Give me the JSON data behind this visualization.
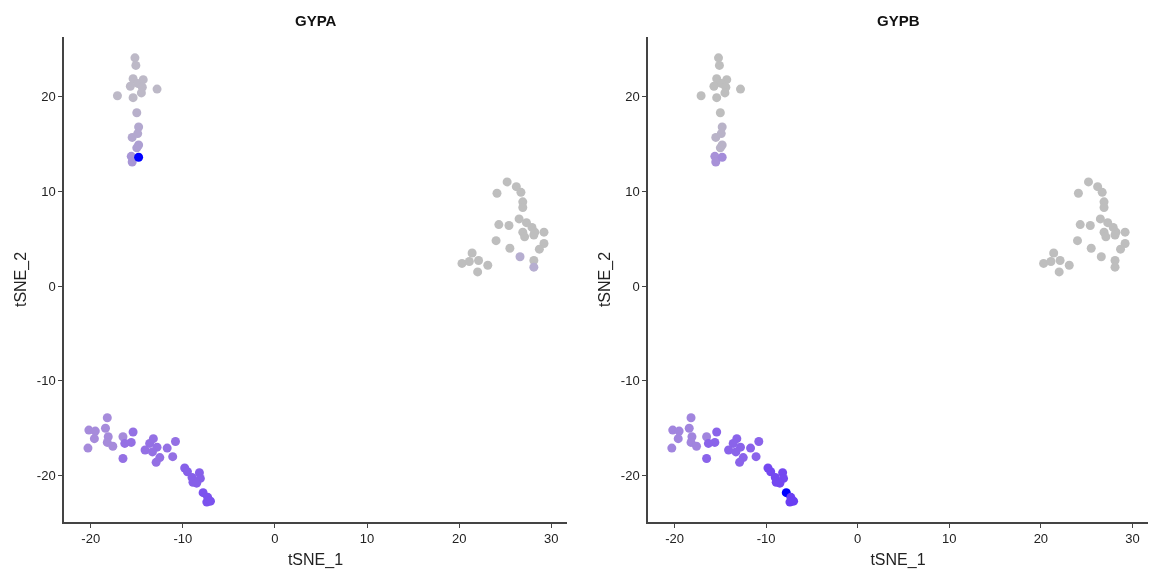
{
  "chart_data": [
    {
      "type": "scatter",
      "title": "GYPA",
      "xlabel": "tSNE_1",
      "ylabel": "tSNE_2",
      "marker": "circle",
      "xlim": [
        -22.9,
        31.7
      ],
      "ylim": [
        -24.9,
        26.3
      ],
      "xticks": [
        -20,
        -10,
        0,
        10,
        20,
        30
      ],
      "yticks": [
        -20,
        -10,
        0,
        10,
        20
      ],
      "x": [
        -15.2,
        -15.1,
        -15.4,
        -14.3,
        -14.9,
        -15.7,
        -14.4,
        -12.8,
        -17.1,
        -15.4,
        -14.5,
        -15.0,
        -14.8,
        -15.5,
        -14.9,
        -14.8,
        -15.0,
        -15.6,
        -15.5,
        -14.8,
        25.2,
        24.1,
        26.2,
        26.7,
        26.9,
        26.9,
        24.3,
        25.4,
        26.5,
        27.3,
        27.9,
        26.9,
        28.2,
        29.2,
        27.1,
        28.1,
        24.0,
        25.5,
        29.2,
        28.7,
        26.6,
        28.1,
        28.1,
        21.4,
        20.3,
        21.1,
        22.1,
        23.1,
        22.0,
        -18.2,
        -20.2,
        -19.5,
        -18.4,
        -19.6,
        -18.1,
        -18.2,
        -17.6,
        -20.3,
        -16.5,
        -15.4,
        -15.6,
        -16.3,
        -16.5,
        -13.2,
        -13.6,
        -12.8,
        -14.1,
        -13.3,
        -12.5,
        -11.7,
        -10.8,
        -11.1,
        -12.9,
        -9.8,
        -9.5,
        -9.0,
        -8.2,
        -8.1,
        -8.9,
        -8.5,
        -7.8,
        -7.3,
        -7.4,
        -7.0
      ],
      "values": [
        24.1,
        23.3,
        21.9,
        21.8,
        21.4,
        21.1,
        21.0,
        20.8,
        20.1,
        19.9,
        20.4,
        18.3,
        16.8,
        15.7,
        16.1,
        14.9,
        14.6,
        13.7,
        13.1,
        13.6,
        11.0,
        9.8,
        10.5,
        9.9,
        8.9,
        8.3,
        6.5,
        6.4,
        7.1,
        6.7,
        6.2,
        5.7,
        5.7,
        5.7,
        5.2,
        5.4,
        4.8,
        4.0,
        4.5,
        3.9,
        3.1,
        2.7,
        2.0,
        3.5,
        2.4,
        2.6,
        2.7,
        2.2,
        1.5,
        -13.9,
        -15.2,
        -15.3,
        -15.0,
        -16.1,
        -15.9,
        -16.5,
        -16.9,
        -17.1,
        -15.9,
        -15.4,
        -16.5,
        -16.6,
        -18.2,
        -16.1,
        -16.6,
        -17.0,
        -17.3,
        -17.5,
        -18.1,
        -17.1,
        -16.4,
        -18.0,
        -18.6,
        -19.2,
        -19.6,
        -20.2,
        -19.7,
        -20.3,
        -20.7,
        -20.8,
        -21.8,
        -22.3,
        -22.8,
        -22.7
      ],
      "colors": [
        "#bdb9c7",
        "#bdb9c7",
        "#bdb9c7",
        "#bdb9c7",
        "#bdb9c7",
        "#bdb9c7",
        "#bdb9c7",
        "#bdb9c7",
        "#bdb9c7",
        "#bdb9c7",
        "#bdb9c7",
        "#b8b0cb",
        "#b3a8cf",
        "#b3a8cf",
        "#b3a8cf",
        "#ad9fd2",
        "#ad9fd2",
        "#a896d6",
        "#a896d6",
        "#0000ff",
        "#bebebe",
        "#bebebe",
        "#bebebe",
        "#bebebe",
        "#bebebe",
        "#bebebe",
        "#bebebe",
        "#bebebe",
        "#bebebe",
        "#bebebe",
        "#bebebe",
        "#bebebe",
        "#bebebe",
        "#bebebe",
        "#bebebe",
        "#bebebe",
        "#bebebe",
        "#bebebe",
        "#bebebe",
        "#bebebe",
        "#b6aed0",
        "#bebebe",
        "#b6aed0",
        "#bebebe",
        "#bebebe",
        "#bebebe",
        "#bebebe",
        "#bebebe",
        "#bebebe",
        "#a68bdb",
        "#a68bdb",
        "#a68bdb",
        "#a68bdb",
        "#a68bdb",
        "#a68bdb",
        "#a68bdb",
        "#a68bdb",
        "#a68bdb",
        "#a68bdb",
        "#9470e4",
        "#9470e4",
        "#9470e4",
        "#9470e4",
        "#9470e4",
        "#9470e4",
        "#9470e4",
        "#9470e4",
        "#9470e4",
        "#9470e4",
        "#9470e4",
        "#9470e4",
        "#9470e4",
        "#9470e4",
        "#8660e9",
        "#8660e9",
        "#8660e9",
        "#8660e9",
        "#8660e9",
        "#8660e9",
        "#8660e9",
        "#7b52ee",
        "#7b52ee",
        "#7b52ee",
        "#7b52ee"
      ]
    },
    {
      "type": "scatter",
      "title": "GYPB",
      "xlabel": "tSNE_1",
      "ylabel": "tSNE_2",
      "marker": "circle",
      "xlim": [
        -22.9,
        31.7
      ],
      "ylim": [
        -24.9,
        26.3
      ],
      "xticks": [
        -20,
        -10,
        0,
        10,
        20,
        30
      ],
      "yticks": [
        -20,
        -10,
        0,
        10,
        20
      ],
      "x": [
        -15.2,
        -15.1,
        -15.4,
        -14.3,
        -14.9,
        -15.7,
        -14.4,
        -12.8,
        -17.1,
        -15.4,
        -14.5,
        -15.0,
        -14.8,
        -15.5,
        -14.9,
        -14.8,
        -15.0,
        -15.6,
        -15.5,
        -14.8,
        25.2,
        24.1,
        26.2,
        26.7,
        26.9,
        26.9,
        24.3,
        25.4,
        26.5,
        27.3,
        27.9,
        26.9,
        28.2,
        29.2,
        27.1,
        28.1,
        24.0,
        25.5,
        29.2,
        28.7,
        26.6,
        28.1,
        28.1,
        21.4,
        20.3,
        21.1,
        22.1,
        23.1,
        22.0,
        -18.2,
        -20.2,
        -19.5,
        -18.4,
        -19.6,
        -18.1,
        -18.2,
        -17.6,
        -20.3,
        -16.5,
        -15.4,
        -15.6,
        -16.3,
        -16.5,
        -13.2,
        -13.6,
        -12.8,
        -14.1,
        -13.3,
        -12.5,
        -11.7,
        -10.8,
        -11.1,
        -12.9,
        -9.8,
        -9.5,
        -9.0,
        -8.2,
        -8.1,
        -8.9,
        -8.5,
        -7.8,
        -7.3,
        -7.4,
        -7.0
      ],
      "values": [
        24.1,
        23.3,
        21.9,
        21.8,
        21.4,
        21.1,
        21.0,
        20.8,
        20.1,
        19.9,
        20.4,
        18.3,
        16.8,
        15.7,
        16.1,
        14.9,
        14.6,
        13.7,
        13.1,
        13.6,
        11.0,
        9.8,
        10.5,
        9.9,
        8.9,
        8.3,
        6.5,
        6.4,
        7.1,
        6.7,
        6.2,
        5.7,
        5.7,
        5.7,
        5.2,
        5.4,
        4.8,
        4.0,
        4.5,
        3.9,
        3.1,
        2.7,
        2.0,
        3.5,
        2.4,
        2.6,
        2.7,
        2.2,
        1.5,
        -13.9,
        -15.2,
        -15.3,
        -15.0,
        -16.1,
        -15.9,
        -16.5,
        -16.9,
        -17.1,
        -15.9,
        -15.4,
        -16.5,
        -16.6,
        -18.2,
        -16.1,
        -16.6,
        -17.0,
        -17.3,
        -17.5,
        -18.1,
        -17.1,
        -16.4,
        -18.0,
        -18.6,
        -19.2,
        -19.6,
        -20.2,
        -19.7,
        -20.3,
        -20.7,
        -20.8,
        -21.8,
        -22.3,
        -22.8,
        -22.7
      ],
      "colors": [
        "#bebebe",
        "#bebebe",
        "#bebebe",
        "#bebebe",
        "#bebebe",
        "#bebebe",
        "#bebebe",
        "#bebebe",
        "#bebebe",
        "#bebebe",
        "#bebebe",
        "#bebebe",
        "#b9b3c8",
        "#b9b3c8",
        "#b9b3c8",
        "#b9b3c8",
        "#b9b3c8",
        "#a891d8",
        "#a891d8",
        "#a48cda",
        "#bebebe",
        "#bebebe",
        "#bebebe",
        "#bebebe",
        "#bebebe",
        "#bebebe",
        "#bebebe",
        "#bebebe",
        "#bebebe",
        "#bebebe",
        "#bebebe",
        "#bebebe",
        "#bebebe",
        "#bebebe",
        "#bebebe",
        "#bebebe",
        "#bebebe",
        "#bebebe",
        "#bebebe",
        "#bebebe",
        "#bebebe",
        "#bebebe",
        "#bebebe",
        "#bebebe",
        "#bebebe",
        "#bebebe",
        "#bebebe",
        "#bebebe",
        "#bebebe",
        "#a185de",
        "#a185de",
        "#a185de",
        "#a185de",
        "#a185de",
        "#a185de",
        "#a185de",
        "#a185de",
        "#a185de",
        "#a185de",
        "#8a63ea",
        "#8a63ea",
        "#8a63ea",
        "#8a63ea",
        "#8a63ea",
        "#8a63ea",
        "#8a63ea",
        "#8a63ea",
        "#8a63ea",
        "#8a63ea",
        "#8a63ea",
        "#8a63ea",
        "#8a63ea",
        "#8a63ea",
        "#7448f0",
        "#7448f0",
        "#7448f0",
        "#7448f0",
        "#7448f0",
        "#7448f0",
        "#7448f0",
        "#0000ff",
        "#6a3ef3",
        "#6a3ef3",
        "#6a3ef3"
      ]
    }
  ]
}
